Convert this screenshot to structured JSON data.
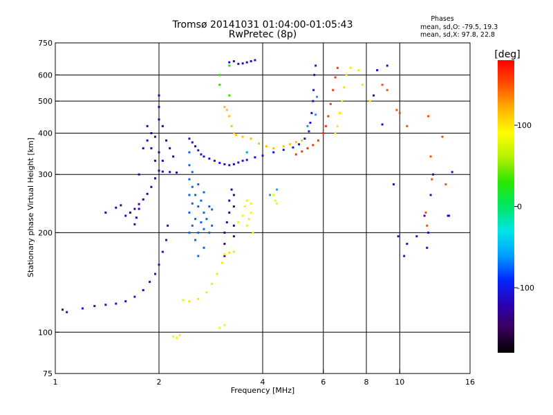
{
  "chart_data": {
    "type": "scatter",
    "title": "Tromsø 20141031 01:04:00-01:05:43",
    "subtitle": "RwPretec (8p)",
    "xlabel": "Frequency [MHz]",
    "ylabel": "Stationary phase Virtual Height [km]",
    "x_scale": "log",
    "y_scale": "log",
    "xlim": [
      1,
      16
    ],
    "ylim": [
      75,
      750
    ],
    "xticks": [
      1,
      2,
      4,
      6,
      8,
      10,
      16
    ],
    "yticks": [
      75,
      100,
      200,
      300,
      400,
      500,
      600,
      750
    ],
    "x_grid": [
      2,
      4,
      6,
      8,
      10
    ],
    "y_grid": [
      100,
      200,
      300,
      400,
      500,
      600
    ],
    "grid": true,
    "info": {
      "title": "Phases",
      "line1": "mean, sd,O: -79.5, 19.3",
      "line2": "mean, sd,X:  97.8, 22.8"
    },
    "colorbar": {
      "label": "[deg]",
      "range": [
        -180,
        180
      ],
      "ticks": [
        100,
        0,
        -100
      ],
      "colors": [
        "#000000",
        "#3a005a",
        "#2b00b4",
        "#0028ff",
        "#00a0ff",
        "#00e6e6",
        "#00e664",
        "#28e600",
        "#b4f000",
        "#ffff00",
        "#ffb400",
        "#ff5000",
        "#ff0000"
      ]
    },
    "series": [
      {
        "phase": -110,
        "points": [
          [
            1.05,
            117
          ],
          [
            1.08,
            115
          ],
          [
            1.2,
            118
          ],
          [
            1.3,
            120
          ],
          [
            1.4,
            121
          ],
          [
            1.5,
            122
          ],
          [
            1.6,
            124
          ],
          [
            1.7,
            128
          ],
          [
            1.8,
            134
          ],
          [
            1.88,
            142
          ],
          [
            1.95,
            150
          ],
          [
            2.0,
            160
          ],
          [
            2.05,
            175
          ],
          [
            2.1,
            190
          ],
          [
            2.12,
            210
          ]
        ]
      },
      {
        "phase": -120,
        "points": [
          [
            1.6,
            225
          ],
          [
            1.65,
            230
          ],
          [
            1.7,
            236
          ],
          [
            1.75,
            244
          ],
          [
            1.8,
            252
          ],
          [
            1.85,
            262
          ],
          [
            1.9,
            275
          ],
          [
            1.95,
            292
          ],
          [
            2.0,
            308
          ],
          [
            2.05,
            306
          ],
          [
            2.15,
            305
          ],
          [
            2.25,
            304
          ]
        ]
      },
      {
        "phase": -125,
        "points": [
          [
            1.4,
            230
          ],
          [
            1.5,
            238
          ],
          [
            1.55,
            242
          ],
          [
            1.7,
            212
          ],
          [
            1.72,
            222
          ],
          [
            1.75,
            236
          ]
        ]
      },
      {
        "phase": -120,
        "points": [
          [
            1.85,
            420
          ],
          [
            1.85,
            380
          ],
          [
            1.9,
            400
          ],
          [
            1.9,
            360
          ],
          [
            1.95,
            390
          ],
          [
            2.0,
            440
          ],
          [
            2.0,
            350
          ],
          [
            2.05,
            420
          ],
          [
            2.05,
            330
          ],
          [
            2.1,
            380
          ],
          [
            2.15,
            360
          ],
          [
            2.2,
            340
          ],
          [
            2.0,
            480
          ],
          [
            2.0,
            520
          ],
          [
            1.95,
            330
          ],
          [
            1.8,
            360
          ],
          [
            1.75,
            300
          ]
        ]
      },
      {
        "phase": -75,
        "points": [
          [
            2.45,
            200
          ],
          [
            2.45,
            230
          ],
          [
            2.45,
            260
          ],
          [
            2.45,
            290
          ],
          [
            2.45,
            320
          ],
          [
            2.45,
            350
          ],
          [
            2.5,
            210
          ],
          [
            2.5,
            245
          ],
          [
            2.5,
            275
          ],
          [
            2.5,
            305
          ],
          [
            2.55,
            190
          ],
          [
            2.55,
            220
          ],
          [
            2.55,
            260
          ],
          [
            2.6,
            170
          ],
          [
            2.6,
            200
          ],
          [
            2.6,
            240
          ],
          [
            2.6,
            280
          ],
          [
            2.65,
            215
          ],
          [
            2.65,
            250
          ],
          [
            2.7,
            180
          ],
          [
            2.7,
            205
          ],
          [
            2.7,
            230
          ],
          [
            2.7,
            265
          ],
          [
            2.75,
            220
          ],
          [
            2.8,
            200
          ],
          [
            2.8,
            240
          ],
          [
            2.85,
            210
          ],
          [
            2.85,
            235
          ]
        ]
      },
      {
        "phase": -105,
        "points": [
          [
            2.45,
            385
          ],
          [
            2.5,
            375
          ],
          [
            2.55,
            365
          ],
          [
            2.6,
            355
          ],
          [
            2.65,
            345
          ],
          [
            2.7,
            340
          ],
          [
            2.8,
            335
          ],
          [
            2.9,
            330
          ],
          [
            3.0,
            325
          ],
          [
            3.1,
            322
          ],
          [
            3.2,
            320
          ],
          [
            3.3,
            322
          ],
          [
            3.4,
            326
          ],
          [
            3.5,
            330
          ],
          [
            3.6,
            332
          ],
          [
            3.8,
            338
          ],
          [
            4.0,
            342
          ],
          [
            4.3,
            350
          ],
          [
            4.6,
            356
          ],
          [
            4.9,
            362
          ],
          [
            5.1,
            370
          ],
          [
            5.3,
            385
          ],
          [
            5.45,
            405
          ],
          [
            5.5,
            430
          ],
          [
            5.55,
            460
          ],
          [
            5.6,
            500
          ],
          [
            5.62,
            540
          ],
          [
            5.65,
            600
          ],
          [
            5.7,
            640
          ]
        ]
      },
      {
        "phase": -110,
        "points": [
          [
            3.4,
            648
          ],
          [
            3.5,
            650
          ],
          [
            3.6,
            655
          ],
          [
            3.7,
            660
          ],
          [
            3.8,
            665
          ],
          [
            3.3,
            660
          ],
          [
            3.2,
            655
          ]
        ]
      },
      {
        "phase": -130,
        "points": [
          [
            3.1,
            170
          ],
          [
            3.1,
            185
          ],
          [
            3.1,
            200
          ],
          [
            3.15,
            215
          ],
          [
            3.2,
            230
          ],
          [
            3.2,
            250
          ],
          [
            3.25,
            270
          ],
          [
            3.3,
            195
          ],
          [
            3.3,
            210
          ],
          [
            3.3,
            240
          ],
          [
            3.3,
            260
          ]
        ]
      },
      {
        "phase": 100,
        "points": [
          [
            2.35,
            125
          ],
          [
            2.45,
            124
          ],
          [
            2.6,
            126
          ],
          [
            2.75,
            132
          ],
          [
            2.85,
            140
          ],
          [
            2.95,
            150
          ],
          [
            3.05,
            162
          ],
          [
            3.1,
            172
          ],
          [
            3.2,
            174
          ],
          [
            3.3,
            175
          ]
        ]
      },
      {
        "phase": 80,
        "points": [
          [
            3.6,
            210
          ],
          [
            3.65,
            220
          ],
          [
            3.7,
            230
          ],
          [
            3.7,
            245
          ],
          [
            3.6,
            250
          ],
          [
            3.55,
            240
          ],
          [
            3.5,
            225
          ],
          [
            3.75,
            200
          ],
          [
            3.4,
            215
          ],
          [
            4.3,
            260
          ],
          [
            4.35,
            250
          ],
          [
            4.4,
            245
          ]
        ]
      },
      {
        "phase": 115,
        "points": [
          [
            3.1,
            480
          ],
          [
            3.15,
            470
          ],
          [
            3.2,
            450
          ],
          [
            3.25,
            420
          ],
          [
            3.3,
            400
          ],
          [
            3.35,
            395
          ],
          [
            3.5,
            390
          ],
          [
            3.7,
            385
          ],
          [
            3.9,
            372
          ],
          [
            4.1,
            365
          ],
          [
            4.3,
            360
          ],
          [
            4.6,
            365
          ],
          [
            4.8,
            370
          ],
          [
            5.0,
            376
          ],
          [
            5.2,
            380
          ]
        ]
      },
      {
        "phase": 160,
        "points": [
          [
            5.0,
            345
          ],
          [
            5.2,
            352
          ],
          [
            5.4,
            360
          ],
          [
            5.6,
            368
          ],
          [
            5.8,
            380
          ],
          [
            6.0,
            400
          ],
          [
            6.1,
            420
          ],
          [
            6.2,
            450
          ],
          [
            6.3,
            490
          ],
          [
            6.4,
            540
          ],
          [
            6.5,
            590
          ],
          [
            6.6,
            630
          ]
        ]
      },
      {
        "phase": 100,
        "points": [
          [
            6.5,
            400
          ],
          [
            6.6,
            420
          ],
          [
            6.7,
            460
          ],
          [
            6.8,
            500
          ],
          [
            6.9,
            550
          ],
          [
            7.0,
            600
          ],
          [
            7.2,
            630
          ],
          [
            7.6,
            620
          ],
          [
            7.8,
            560
          ],
          [
            8.2,
            500
          ]
        ]
      },
      {
        "phase": 150,
        "points": [
          [
            8.9,
            560
          ],
          [
            9.2,
            540
          ],
          [
            9.8,
            470
          ],
          [
            10.0,
            460
          ],
          [
            10.5,
            420
          ],
          [
            12.1,
            450
          ],
          [
            12.3,
            340
          ],
          [
            12.4,
            290
          ],
          [
            11.9,
            230
          ],
          [
            12.0,
            210
          ],
          [
            13.3,
            390
          ],
          [
            13.6,
            280
          ]
        ]
      },
      {
        "phase": -110,
        "points": [
          [
            8.4,
            520
          ],
          [
            8.6,
            620
          ],
          [
            9.2,
            640
          ],
          [
            9.6,
            280
          ],
          [
            9.9,
            195
          ],
          [
            10.5,
            185
          ],
          [
            11.2,
            195
          ],
          [
            11.8,
            225
          ],
          [
            12.0,
            180
          ],
          [
            12.1,
            200
          ],
          [
            12.3,
            260
          ],
          [
            12.5,
            300
          ],
          [
            13.8,
            225
          ],
          [
            13.9,
            225
          ],
          [
            14.2,
            305
          ],
          [
            8.9,
            425
          ],
          [
            10.3,
            170
          ]
        ]
      },
      {
        "phase": 95,
        "points": [
          [
            2.2,
            97
          ],
          [
            2.3,
            98
          ],
          [
            3.0,
            103
          ],
          [
            3.1,
            105
          ],
          [
            2.25,
            96
          ]
        ]
      },
      {
        "phase": 30,
        "points": [
          [
            3.0,
            600
          ],
          [
            3.2,
            520
          ],
          [
            3.0,
            560
          ],
          [
            3.2,
            640
          ]
        ]
      },
      {
        "phase": -60,
        "points": [
          [
            3.6,
            350
          ],
          [
            4.2,
            260
          ],
          [
            4.4,
            270
          ],
          [
            5.7,
            455
          ],
          [
            5.75,
            515
          ],
          [
            5.4,
            420
          ]
        ]
      }
    ]
  }
}
